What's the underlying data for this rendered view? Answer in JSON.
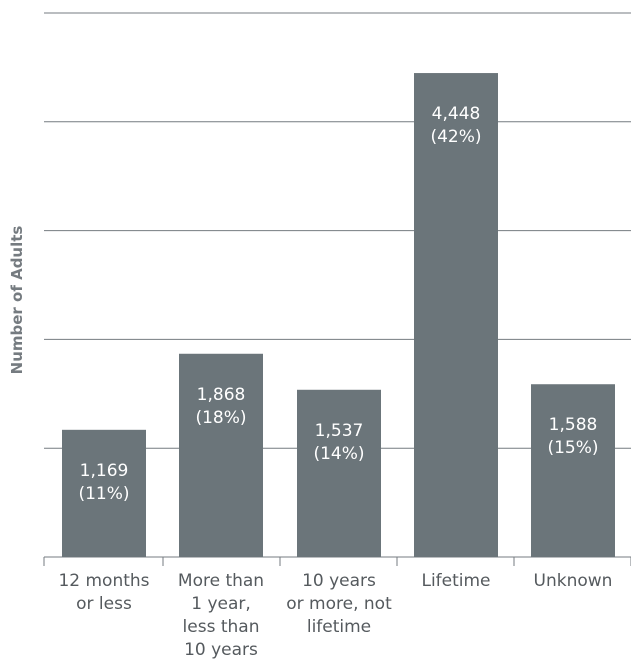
{
  "chart_data": {
    "type": "bar",
    "ylabel": "Number of Adults",
    "ylim": [
      0,
      5000
    ],
    "yticks": [
      1000,
      2000,
      3000,
      4000,
      5000
    ],
    "grid": true,
    "categories": [
      [
        "12 months",
        "or less"
      ],
      [
        "More than",
        "1 year,",
        "less than",
        "10 years"
      ],
      [
        "10 years",
        "or more, not",
        "lifetime"
      ],
      [
        "Lifetime"
      ],
      [
        "Unknown"
      ]
    ],
    "values": [
      1169,
      1868,
      1537,
      4448,
      1588
    ],
    "value_labels": [
      "1,169",
      "1,868",
      "1,537",
      "4,448",
      "1,588"
    ],
    "percent_labels": [
      "(11%)",
      "(18%)",
      "(14%)",
      "(42%)",
      "(15%)"
    ],
    "colors": {
      "bar": "#6b757a",
      "grid": "#757b80",
      "label_text": "#ffffff",
      "axis_text": "#555a5e"
    }
  }
}
